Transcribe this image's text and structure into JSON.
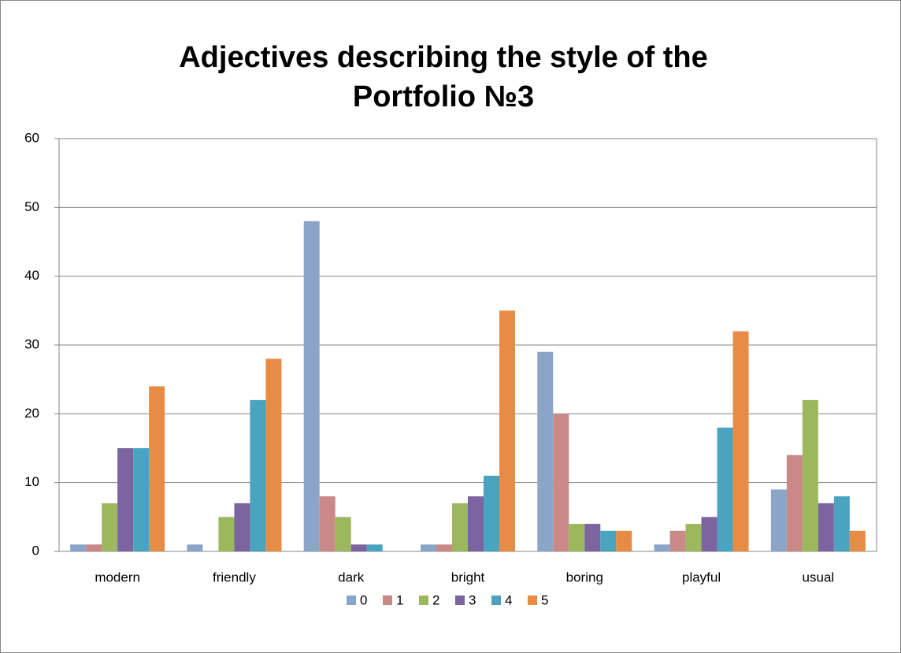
{
  "chart_data": {
    "type": "bar",
    "title": [
      "Adjectives describing the style of the",
      "Portfolio №3"
    ],
    "categories": [
      "modern",
      "friendly",
      "dark",
      "bright",
      "boring",
      "playful",
      "usual"
    ],
    "series": [
      {
        "name": "0",
        "color": "#8ba5c9",
        "values": [
          1,
          1,
          48,
          1,
          29,
          1,
          9
        ]
      },
      {
        "name": "1",
        "color": "#c98a87",
        "values": [
          1,
          0,
          8,
          1,
          20,
          3,
          14
        ]
      },
      {
        "name": "2",
        "color": "#9bb85e",
        "values": [
          7,
          5,
          5,
          7,
          4,
          4,
          22
        ]
      },
      {
        "name": "3",
        "color": "#7b64a0",
        "values": [
          15,
          7,
          1,
          8,
          4,
          5,
          7
        ]
      },
      {
        "name": "4",
        "color": "#4aa3bf",
        "values": [
          15,
          22,
          1,
          11,
          3,
          18,
          8
        ]
      },
      {
        "name": "5",
        "color": "#e88c45",
        "values": [
          24,
          28,
          0,
          35,
          3,
          32,
          3
        ]
      }
    ],
    "ylim": [
      0,
      60
    ],
    "yticks": [
      0,
      10,
      20,
      30,
      40,
      50,
      60
    ],
    "grid": true,
    "legend": "bottom"
  }
}
